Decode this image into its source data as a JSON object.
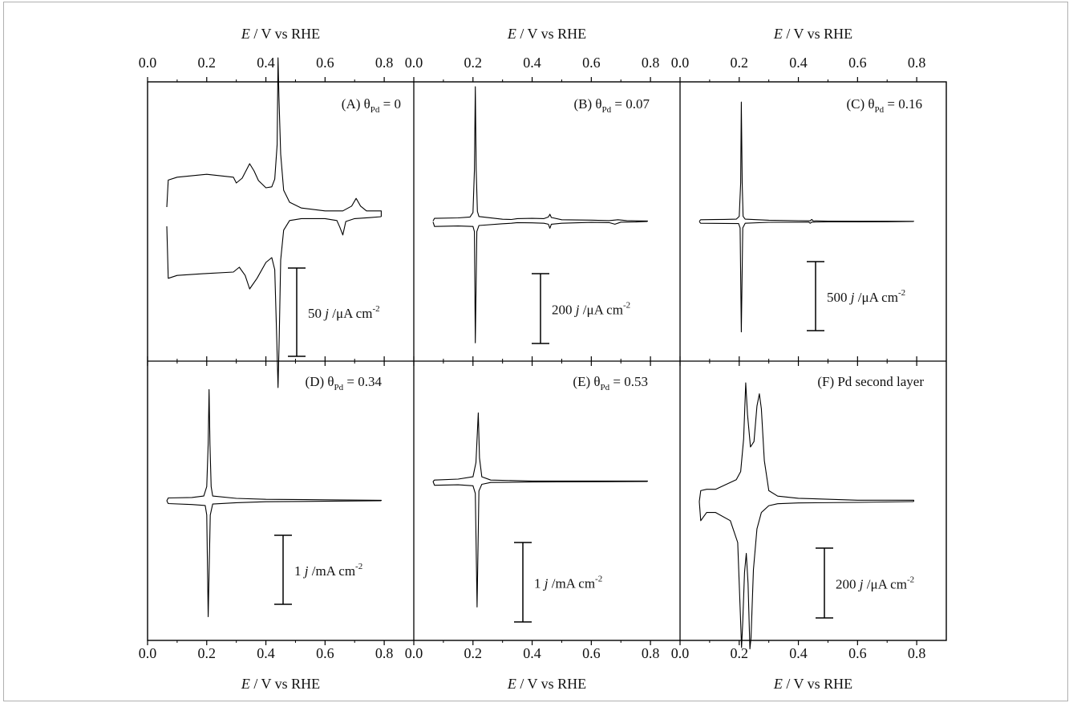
{
  "chart_data": {
    "type": "line",
    "xlabel": "E / V vs RHE",
    "xlim": [
      0.0,
      0.9
    ],
    "xticks": [
      0.0,
      0.2,
      0.4,
      0.6,
      0.8
    ],
    "xtick_labels": [
      "0.0",
      "0.2",
      "0.4",
      "0.6",
      "0.8"
    ],
    "grid": false,
    "line_color": "#000000",
    "panels": [
      {
        "id": "A",
        "label": "(A) θPd = 0",
        "label_prefix": "(A) θ",
        "label_sub": "Pd",
        "label_suffix": " = 0",
        "scale_bar": {
          "value": "50",
          "unit_prefix": " j /μA cm",
          "unit_exp": "-2"
        },
        "anodic": [
          [
            0.065,
            20
          ],
          [
            0.07,
            76
          ],
          [
            0.1,
            82
          ],
          [
            0.2,
            88
          ],
          [
            0.29,
            82
          ],
          [
            0.3,
            70
          ],
          [
            0.32,
            80
          ],
          [
            0.345,
            110
          ],
          [
            0.36,
            95
          ],
          [
            0.375,
            75
          ],
          [
            0.4,
            60
          ],
          [
            0.42,
            62
          ],
          [
            0.43,
            78
          ],
          [
            0.438,
            150
          ],
          [
            0.441,
            330
          ],
          [
            0.444,
            250
          ],
          [
            0.45,
            130
          ],
          [
            0.46,
            55
          ],
          [
            0.48,
            30
          ],
          [
            0.52,
            18
          ],
          [
            0.6,
            12
          ],
          [
            0.66,
            12
          ],
          [
            0.69,
            22
          ],
          [
            0.705,
            38
          ],
          [
            0.72,
            22
          ],
          [
            0.74,
            12
          ],
          [
            0.79,
            12
          ],
          [
            0.79,
            0
          ]
        ],
        "cathodic": [
          [
            0.79,
            0
          ],
          [
            0.75,
            -2
          ],
          [
            0.7,
            -4
          ],
          [
            0.67,
            -10
          ],
          [
            0.66,
            -38
          ],
          [
            0.65,
            -22
          ],
          [
            0.64,
            -8
          ],
          [
            0.6,
            -4
          ],
          [
            0.52,
            -4
          ],
          [
            0.48,
            -8
          ],
          [
            0.46,
            -28
          ],
          [
            0.45,
            -90
          ],
          [
            0.445,
            -250
          ],
          [
            0.441,
            -355
          ],
          [
            0.437,
            -260
          ],
          [
            0.43,
            -110
          ],
          [
            0.42,
            -85
          ],
          [
            0.4,
            -95
          ],
          [
            0.37,
            -128
          ],
          [
            0.345,
            -150
          ],
          [
            0.33,
            -122
          ],
          [
            0.31,
            -105
          ],
          [
            0.29,
            -115
          ],
          [
            0.2,
            -118
          ],
          [
            0.1,
            -122
          ],
          [
            0.07,
            -128
          ],
          [
            0.065,
            -20
          ]
        ]
      },
      {
        "id": "B",
        "label": "(B) θPd = 0.07",
        "label_prefix": "(B) θ",
        "label_sub": "Pd",
        "label_suffix": " = 0.07",
        "scale_bar": {
          "value": "200",
          "unit_prefix": " j /μA cm",
          "unit_exp": "-2"
        },
        "anodic": [
          [
            0.065,
            2
          ],
          [
            0.07,
            14
          ],
          [
            0.15,
            16
          ],
          [
            0.19,
            20
          ],
          [
            0.2,
            40
          ],
          [
            0.205,
            230
          ],
          [
            0.208,
            600
          ],
          [
            0.211,
            230
          ],
          [
            0.215,
            45
          ],
          [
            0.22,
            22
          ],
          [
            0.3,
            10
          ],
          [
            0.33,
            9
          ],
          [
            0.35,
            13
          ],
          [
            0.4,
            14
          ],
          [
            0.44,
            13
          ],
          [
            0.455,
            20
          ],
          [
            0.46,
            32
          ],
          [
            0.465,
            18
          ],
          [
            0.5,
            8
          ],
          [
            0.6,
            6
          ],
          [
            0.66,
            4
          ],
          [
            0.69,
            8
          ],
          [
            0.72,
            4
          ],
          [
            0.75,
            3
          ],
          [
            0.79,
            2
          ],
          [
            0.79,
            0
          ]
        ],
        "cathodic": [
          [
            0.79,
            0
          ],
          [
            0.75,
            -2
          ],
          [
            0.7,
            -3
          ],
          [
            0.68,
            -12
          ],
          [
            0.66,
            -5
          ],
          [
            0.6,
            -4
          ],
          [
            0.5,
            -8
          ],
          [
            0.465,
            -12
          ],
          [
            0.46,
            -30
          ],
          [
            0.455,
            -12
          ],
          [
            0.44,
            -8
          ],
          [
            0.4,
            -6
          ],
          [
            0.35,
            -5
          ],
          [
            0.33,
            -8
          ],
          [
            0.3,
            -10
          ],
          [
            0.22,
            -18
          ],
          [
            0.213,
            -45
          ],
          [
            0.208,
            -540
          ],
          [
            0.205,
            -45
          ],
          [
            0.2,
            -22
          ],
          [
            0.15,
            -20
          ],
          [
            0.07,
            -22
          ],
          [
            0.065,
            -2
          ]
        ]
      },
      {
        "id": "C",
        "label": "(C) θPd = 0.16",
        "label_prefix": "(C) θ",
        "label_sub": "Pd",
        "label_suffix": " = 0.16",
        "scale_bar": {
          "value": "500",
          "unit_prefix": " j /μA cm",
          "unit_exp": "-2"
        },
        "anodic": [
          [
            0.065,
            2
          ],
          [
            0.07,
            14
          ],
          [
            0.15,
            16
          ],
          [
            0.19,
            18
          ],
          [
            0.2,
            40
          ],
          [
            0.205,
            300
          ],
          [
            0.207,
            930
          ],
          [
            0.21,
            300
          ],
          [
            0.213,
            40
          ],
          [
            0.22,
            18
          ],
          [
            0.3,
            10
          ],
          [
            0.4,
            6
          ],
          [
            0.44,
            5
          ],
          [
            0.445,
            16
          ],
          [
            0.45,
            5
          ],
          [
            0.5,
            3
          ],
          [
            0.6,
            2
          ],
          [
            0.7,
            2
          ],
          [
            0.79,
            1
          ],
          [
            0.79,
            0
          ]
        ],
        "cathodic": [
          [
            0.79,
            0
          ],
          [
            0.7,
            -2
          ],
          [
            0.6,
            -3
          ],
          [
            0.5,
            -3
          ],
          [
            0.445,
            -5
          ],
          [
            0.44,
            -14
          ],
          [
            0.435,
            -5
          ],
          [
            0.4,
            -5
          ],
          [
            0.3,
            -6
          ],
          [
            0.22,
            -14
          ],
          [
            0.212,
            -50
          ],
          [
            0.207,
            -860
          ],
          [
            0.203,
            -50
          ],
          [
            0.198,
            -16
          ],
          [
            0.15,
            -15
          ],
          [
            0.07,
            -14
          ],
          [
            0.065,
            -2
          ]
        ]
      },
      {
        "id": "D",
        "label": "(D) θPd = 0.34",
        "label_prefix": "(D) θ",
        "label_sub": "Pd",
        "label_suffix": " = 0.34",
        "scale_bar": {
          "value": "1",
          "unit_prefix": "  j /mA cm",
          "unit_exp": "-2"
        },
        "anodic": [
          [
            0.065,
            0
          ],
          [
            0.07,
            0.06
          ],
          [
            0.15,
            0.07
          ],
          [
            0.19,
            0.1
          ],
          [
            0.2,
            0.3
          ],
          [
            0.205,
            1.2
          ],
          [
            0.208,
            2.35
          ],
          [
            0.211,
            1.2
          ],
          [
            0.215,
            0.3
          ],
          [
            0.22,
            0.1
          ],
          [
            0.3,
            0.05
          ],
          [
            0.4,
            0.03
          ],
          [
            0.6,
            0.02
          ],
          [
            0.79,
            0.01
          ],
          [
            0.79,
            0
          ]
        ],
        "cathodic": [
          [
            0.79,
            0
          ],
          [
            0.6,
            -0.01
          ],
          [
            0.4,
            -0.02
          ],
          [
            0.3,
            -0.04
          ],
          [
            0.22,
            -0.07
          ],
          [
            0.212,
            -0.3
          ],
          [
            0.205,
            -2.45
          ],
          [
            0.2,
            -0.3
          ],
          [
            0.195,
            -0.1
          ],
          [
            0.15,
            -0.08
          ],
          [
            0.07,
            -0.06
          ],
          [
            0.065,
            0
          ]
        ]
      },
      {
        "id": "E",
        "label": "(E) θPd = 0.53",
        "label_prefix": "(E) θ",
        "label_sub": "Pd",
        "label_suffix": " = 0.53",
        "scale_bar": {
          "value": "1",
          "unit_prefix": " j /mA cm",
          "unit_exp": "-2"
        },
        "anodic": [
          [
            0.065,
            0
          ],
          [
            0.07,
            0.03
          ],
          [
            0.15,
            0.05
          ],
          [
            0.2,
            0.1
          ],
          [
            0.21,
            0.4
          ],
          [
            0.218,
            1.45
          ],
          [
            0.222,
            0.5
          ],
          [
            0.23,
            0.1
          ],
          [
            0.26,
            0.03
          ],
          [
            0.4,
            0.01
          ],
          [
            0.79,
            0.01
          ],
          [
            0.79,
            0
          ]
        ],
        "cathodic": [
          [
            0.79,
            0
          ],
          [
            0.4,
            -0.01
          ],
          [
            0.26,
            -0.02
          ],
          [
            0.23,
            -0.06
          ],
          [
            0.22,
            -0.2
          ],
          [
            0.214,
            -2.65
          ],
          [
            0.208,
            -0.25
          ],
          [
            0.2,
            -0.09
          ],
          [
            0.15,
            -0.07
          ],
          [
            0.07,
            -0.08
          ],
          [
            0.065,
            0
          ]
        ]
      },
      {
        "id": "F",
        "label": "(F) Pd second layer",
        "label_prefix": "(F) Pd second layer",
        "label_sub": "",
        "label_suffix": "",
        "scale_bar": {
          "value": "200",
          "unit_prefix": " j /μA cm",
          "unit_exp": "-2"
        },
        "anodic": [
          [
            0.065,
            0
          ],
          [
            0.07,
            40
          ],
          [
            0.09,
            45
          ],
          [
            0.12,
            45
          ],
          [
            0.15,
            60
          ],
          [
            0.19,
            80
          ],
          [
            0.205,
            110
          ],
          [
            0.215,
            230
          ],
          [
            0.222,
            435
          ],
          [
            0.228,
            320
          ],
          [
            0.238,
            200
          ],
          [
            0.25,
            220
          ],
          [
            0.26,
            350
          ],
          [
            0.268,
            395
          ],
          [
            0.275,
            340
          ],
          [
            0.285,
            150
          ],
          [
            0.3,
            40
          ],
          [
            0.33,
            20
          ],
          [
            0.4,
            12
          ],
          [
            0.6,
            5
          ],
          [
            0.79,
            5
          ],
          [
            0.79,
            0
          ]
        ],
        "cathodic": [
          [
            0.79,
            0
          ],
          [
            0.6,
            -3
          ],
          [
            0.4,
            -5
          ],
          [
            0.33,
            -8
          ],
          [
            0.3,
            -15
          ],
          [
            0.275,
            -40
          ],
          [
            0.26,
            -100
          ],
          [
            0.248,
            -250
          ],
          [
            0.24,
            -500
          ],
          [
            0.236,
            -540
          ],
          [
            0.23,
            -300
          ],
          [
            0.224,
            -190
          ],
          [
            0.218,
            -260
          ],
          [
            0.212,
            -440
          ],
          [
            0.208,
            -535
          ],
          [
            0.204,
            -420
          ],
          [
            0.195,
            -150
          ],
          [
            0.17,
            -70
          ],
          [
            0.12,
            -40
          ],
          [
            0.09,
            -40
          ],
          [
            0.07,
            -70
          ],
          [
            0.065,
            0
          ]
        ]
      }
    ]
  }
}
